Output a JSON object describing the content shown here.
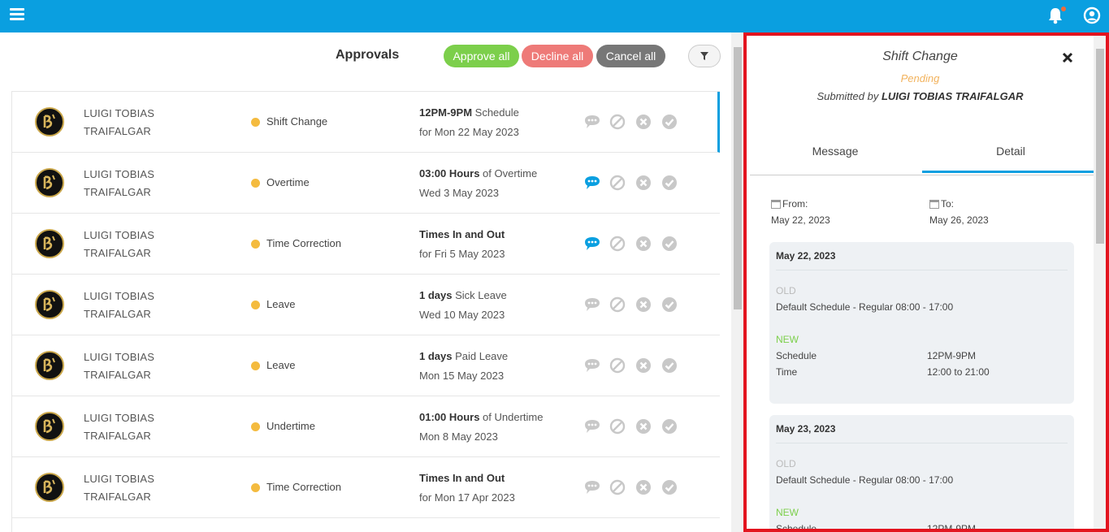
{
  "header": {
    "menu_icon": "hamburger-menu-icon",
    "notification_icon": "bell-icon",
    "user_icon": "user-circle-icon",
    "accent": "#0a9fe0"
  },
  "toolbar": {
    "title": "Approvals",
    "approve_all": "Approve all",
    "decline_all": "Decline all",
    "cancel_all": "Cancel all",
    "filter_icon": "filter-icon"
  },
  "rows": [
    {
      "name1": "LUIGI TOBIAS",
      "name2": "TRAIFALGAR",
      "type": "Shift Change",
      "d1_bold": "12PM-9PM",
      "d1_rest": " Schedule",
      "d2": "for Mon 22 May 2023",
      "msg_active": false
    },
    {
      "name1": "LUIGI TOBIAS",
      "name2": "TRAIFALGAR",
      "type": "Overtime",
      "d1_bold": "03:00 Hours",
      "d1_rest": " of Overtime",
      "d2": "Wed 3 May 2023",
      "msg_active": true
    },
    {
      "name1": "LUIGI TOBIAS",
      "name2": "TRAIFALGAR",
      "type": "Time Correction",
      "d1_bold": "Times In and Out",
      "d1_rest": "",
      "d2": "for Fri 5 May 2023",
      "msg_active": true
    },
    {
      "name1": "LUIGI TOBIAS",
      "name2": "TRAIFALGAR",
      "type": "Leave",
      "d1_bold": "1 days",
      "d1_rest": " Sick Leave",
      "d2": "Wed 10 May 2023",
      "msg_active": false
    },
    {
      "name1": "LUIGI TOBIAS",
      "name2": "TRAIFALGAR",
      "type": "Leave",
      "d1_bold": "1 days",
      "d1_rest": " Paid Leave",
      "d2": "Mon 15 May 2023",
      "msg_active": false
    },
    {
      "name1": "LUIGI TOBIAS",
      "name2": "TRAIFALGAR",
      "type": "Undertime",
      "d1_bold": "01:00 Hours",
      "d1_rest": " of Undertime",
      "d2": "Mon 8 May 2023",
      "msg_active": false
    },
    {
      "name1": "LUIGI TOBIAS",
      "name2": "TRAIFALGAR",
      "type": "Time Correction",
      "d1_bold": "Times In and Out",
      "d1_rest": "",
      "d2": "for Mon 17 Apr 2023",
      "msg_active": false
    }
  ],
  "panel": {
    "title": "Shift Change",
    "status": "Pending",
    "submitted_prefix": "Submitted by ",
    "submitted_name": "LUIGI TOBIAS TRAIFALGAR",
    "tabs": [
      "Message",
      "Detail"
    ],
    "from_label": "From:",
    "from_value": "May 22, 2023",
    "to_label": "To:",
    "to_value": "May 26, 2023",
    "cards": [
      {
        "date": "May 22, 2023",
        "old_label": "OLD",
        "old_value": "Default Schedule - Regular 08:00 - 17:00",
        "new_label": "NEW",
        "schedule_key": "Schedule",
        "schedule_val": "12PM-9PM",
        "time_key": "Time",
        "time_val": "12:00 to 21:00"
      },
      {
        "date": "May 23, 2023",
        "old_label": "OLD",
        "old_value": "Default Schedule - Regular 08:00 - 17:00",
        "new_label": "NEW",
        "schedule_key": "Schedule",
        "schedule_val": "12PM-9PM"
      }
    ]
  }
}
